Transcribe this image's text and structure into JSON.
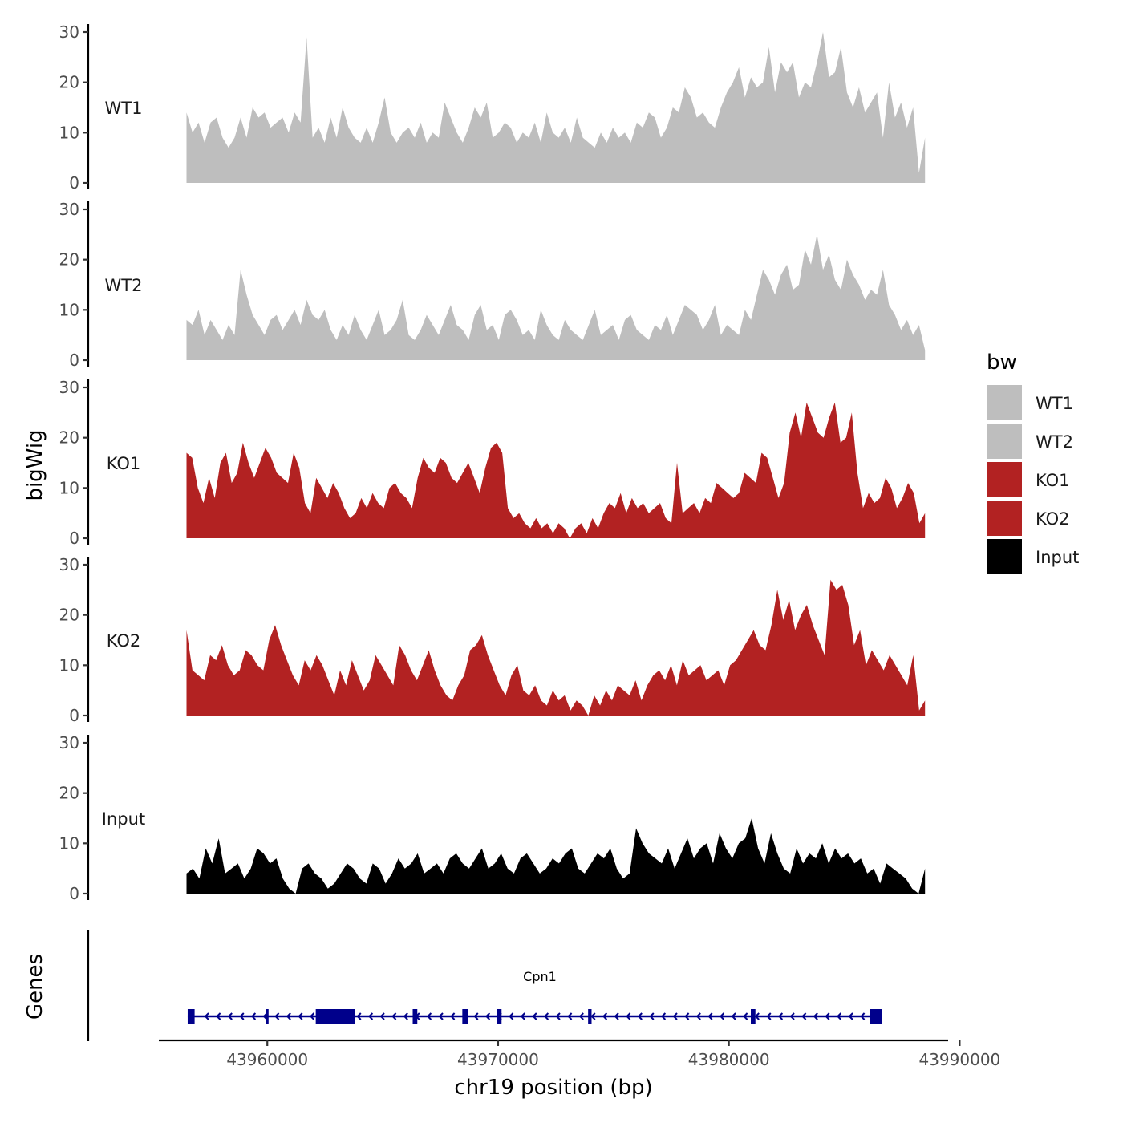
{
  "chart_data": {
    "type": "area",
    "ylabel": "bigWig",
    "xlabel": "chr19 position (bp)",
    "xlim": [
      43955300,
      43989500
    ],
    "x_ticks": [
      43960000,
      43970000,
      43980000,
      43990000
    ],
    "x_tick_labels": [
      "43960000",
      "43970000",
      "43980000",
      "43990000"
    ],
    "ylim": [
      0,
      30
    ],
    "y_ticks": [
      0,
      10,
      20,
      30
    ],
    "y_tick_labels": [
      "0",
      "10",
      "20",
      "30"
    ],
    "region_start": 43956500,
    "region_end": 43988500,
    "legend": {
      "title": "bw",
      "entries": [
        {
          "label": "WT1",
          "color": "#bebebe"
        },
        {
          "label": "WT2",
          "color": "#bebebe"
        },
        {
          "label": "KO1",
          "color": "#b22222"
        },
        {
          "label": "KO2",
          "color": "#b22222"
        },
        {
          "label": "Input",
          "color": "#000000"
        }
      ]
    },
    "series": [
      {
        "name": "WT1",
        "color": "#bebebe",
        "values": [
          14,
          10,
          12,
          8,
          12,
          13,
          9,
          7,
          9,
          13,
          9,
          15,
          13,
          14,
          11,
          12,
          13,
          10,
          14,
          12,
          29,
          9,
          11,
          8,
          13,
          9,
          15,
          11,
          9,
          8,
          11,
          8,
          12,
          17,
          10,
          8,
          10,
          11,
          9,
          12,
          8,
          10,
          9,
          16,
          13,
          10,
          8,
          11,
          15,
          13,
          16,
          9,
          10,
          12,
          11,
          8,
          10,
          9,
          12,
          8,
          14,
          10,
          9,
          11,
          8,
          13,
          9,
          8,
          7,
          10,
          8,
          11,
          9,
          10,
          8,
          12,
          11,
          14,
          13,
          9,
          11,
          15,
          14,
          19,
          17,
          13,
          14,
          12,
          11,
          15,
          18,
          20,
          23,
          17,
          21,
          19,
          20,
          27,
          18,
          24,
          22,
          24,
          17,
          20,
          19,
          24,
          30,
          21,
          22,
          27,
          18,
          15,
          19,
          14,
          16,
          18,
          9,
          20,
          13,
          16,
          11,
          15,
          2,
          9
        ]
      },
      {
        "name": "WT2",
        "color": "#bebebe",
        "values": [
          8,
          7,
          10,
          5,
          8,
          6,
          4,
          7,
          5,
          18,
          13,
          9,
          7,
          5,
          8,
          9,
          6,
          8,
          10,
          7,
          12,
          9,
          8,
          10,
          6,
          4,
          7,
          5,
          9,
          6,
          4,
          7,
          10,
          5,
          6,
          8,
          12,
          5,
          4,
          6,
          9,
          7,
          5,
          8,
          11,
          7,
          6,
          4,
          9,
          11,
          6,
          7,
          4,
          9,
          10,
          8,
          5,
          6,
          4,
          10,
          7,
          5,
          4,
          8,
          6,
          5,
          4,
          7,
          10,
          5,
          6,
          7,
          4,
          8,
          9,
          6,
          5,
          4,
          7,
          6,
          9,
          5,
          8,
          11,
          10,
          9,
          6,
          8,
          11,
          5,
          7,
          6,
          5,
          10,
          8,
          13,
          18,
          16,
          13,
          17,
          19,
          14,
          15,
          22,
          19,
          25,
          18,
          21,
          16,
          14,
          20,
          17,
          15,
          12,
          14,
          13,
          18,
          11,
          9,
          6,
          8,
          5,
          7,
          2
        ]
      },
      {
        "name": "KO1",
        "color": "#b22222",
        "values": [
          17,
          16,
          10,
          7,
          12,
          8,
          15,
          17,
          11,
          13,
          19,
          15,
          12,
          15,
          18,
          16,
          13,
          12,
          11,
          17,
          14,
          7,
          5,
          12,
          10,
          8,
          11,
          9,
          6,
          4,
          5,
          8,
          6,
          9,
          7,
          6,
          10,
          11,
          9,
          8,
          6,
          12,
          16,
          14,
          13,
          16,
          15,
          12,
          11,
          13,
          15,
          12,
          9,
          14,
          18,
          19,
          17,
          6,
          4,
          5,
          3,
          2,
          4,
          2,
          3,
          1,
          3,
          2,
          0,
          2,
          3,
          1,
          4,
          2,
          5,
          7,
          6,
          9,
          5,
          8,
          6,
          7,
          5,
          6,
          7,
          4,
          3,
          15,
          5,
          6,
          7,
          5,
          8,
          7,
          11,
          10,
          9,
          8,
          9,
          13,
          12,
          11,
          17,
          16,
          12,
          8,
          11,
          21,
          25,
          20,
          27,
          24,
          21,
          20,
          24,
          27,
          19,
          20,
          25,
          13,
          6,
          9,
          7,
          8,
          12,
          10,
          6,
          8,
          11,
          9,
          3,
          5
        ]
      },
      {
        "name": "KO2",
        "color": "#b22222",
        "values": [
          17,
          9,
          8,
          7,
          12,
          11,
          14,
          10,
          8,
          9,
          13,
          12,
          10,
          9,
          15,
          18,
          14,
          11,
          8,
          6,
          11,
          9,
          12,
          10,
          7,
          4,
          9,
          6,
          11,
          8,
          5,
          7,
          12,
          10,
          8,
          6,
          14,
          12,
          9,
          7,
          10,
          13,
          9,
          6,
          4,
          3,
          6,
          8,
          13,
          14,
          16,
          12,
          9,
          6,
          4,
          8,
          10,
          5,
          4,
          6,
          3,
          2,
          5,
          3,
          4,
          1,
          3,
          2,
          0,
          4,
          2,
          5,
          3,
          6,
          5,
          4,
          7,
          3,
          6,
          8,
          9,
          7,
          10,
          6,
          11,
          8,
          9,
          10,
          7,
          8,
          9,
          6,
          10,
          11,
          13,
          15,
          17,
          14,
          13,
          18,
          25,
          19,
          23,
          17,
          20,
          22,
          18,
          15,
          12,
          27,
          25,
          26,
          22,
          14,
          17,
          10,
          13,
          11,
          9,
          12,
          10,
          8,
          6,
          12,
          1,
          3
        ]
      },
      {
        "name": "Input",
        "color": "#000000",
        "values": [
          4,
          5,
          3,
          9,
          6,
          11,
          4,
          5,
          6,
          3,
          5,
          9,
          8,
          6,
          7,
          3,
          1,
          0,
          5,
          6,
          4,
          3,
          1,
          2,
          4,
          6,
          5,
          3,
          2,
          6,
          5,
          2,
          4,
          7,
          5,
          6,
          8,
          4,
          5,
          6,
          4,
          7,
          8,
          6,
          5,
          7,
          9,
          5,
          6,
          8,
          5,
          4,
          7,
          8,
          6,
          4,
          5,
          7,
          6,
          8,
          9,
          5,
          4,
          6,
          8,
          7,
          9,
          5,
          3,
          4,
          13,
          10,
          8,
          7,
          6,
          9,
          5,
          8,
          11,
          7,
          9,
          10,
          6,
          12,
          9,
          7,
          10,
          11,
          15,
          9,
          6,
          12,
          8,
          5,
          4,
          9,
          6,
          8,
          7,
          10,
          6,
          9,
          7,
          8,
          6,
          7,
          4,
          5,
          2,
          6,
          5,
          4,
          3,
          1,
          0,
          5
        ]
      }
    ],
    "genes": {
      "track_label": "Genes",
      "gene_name": "Cpn1",
      "strand": "-",
      "start": 43956550,
      "end": 43986650,
      "exons": [
        [
          43956550,
          43956850
        ],
        [
          43959950,
          43960050
        ],
        [
          43962100,
          43963800
        ],
        [
          43966300,
          43966500
        ],
        [
          43968450,
          43968700
        ],
        [
          43969950,
          43970150
        ],
        [
          43973900,
          43974050
        ],
        [
          43980950,
          43981150
        ],
        [
          43986100,
          43986650
        ]
      ]
    }
  }
}
